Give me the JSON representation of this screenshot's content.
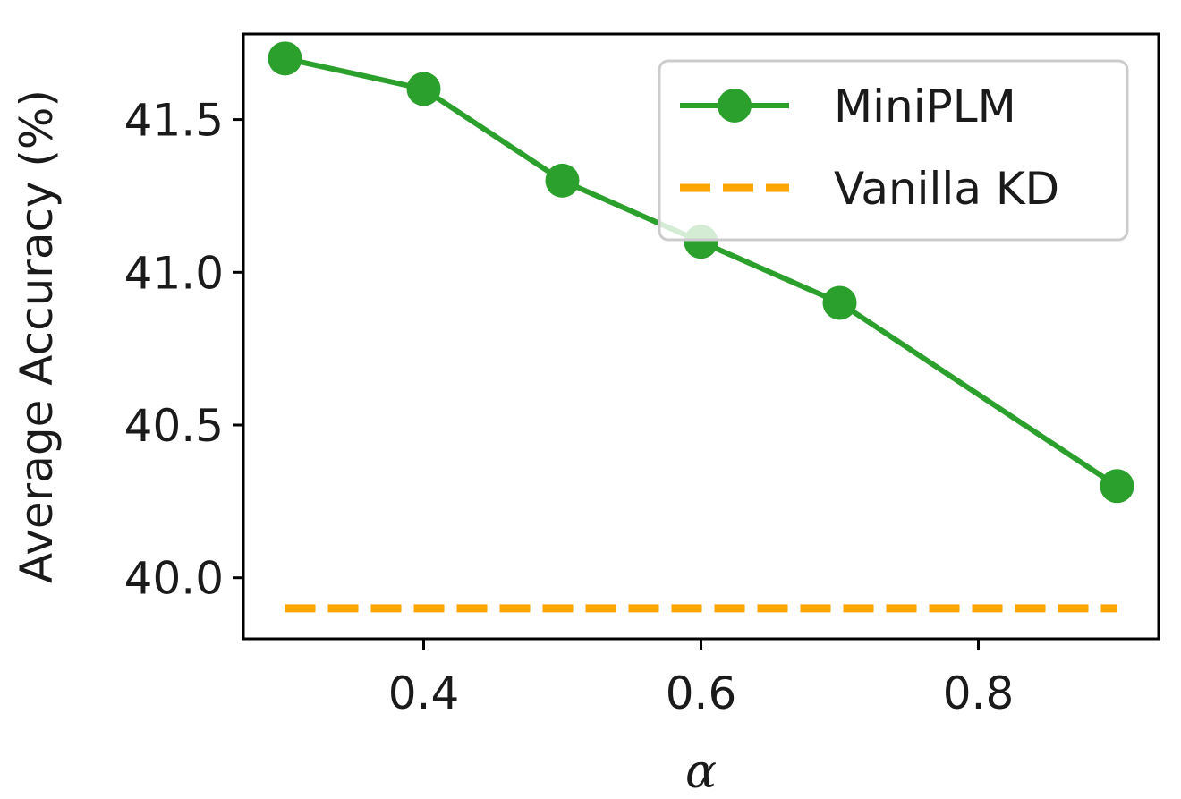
{
  "chart_data": {
    "type": "line",
    "title": "",
    "xlabel": "α",
    "ylabel": "Average Accuracy (%)",
    "xlim": [
      0.27,
      0.93
    ],
    "ylim": [
      39.8,
      41.78
    ],
    "xticks": [
      0.4,
      0.6,
      0.8
    ],
    "xtick_labels": [
      "0.4",
      "0.6",
      "0.8"
    ],
    "yticks": [
      40.0,
      40.5,
      41.0,
      41.5
    ],
    "ytick_labels": [
      "40.0",
      "40.5",
      "41.0",
      "41.5"
    ],
    "grid": false,
    "legend_position": "top-right",
    "series": [
      {
        "name": "MiniPLM",
        "style": "solid-marker",
        "color": "#2ca02c",
        "x": [
          0.3,
          0.4,
          0.5,
          0.6,
          0.7,
          0.9
        ],
        "values": [
          41.7,
          41.6,
          41.3,
          41.1,
          40.9,
          40.3
        ]
      },
      {
        "name": "Vanilla KD",
        "style": "dashed",
        "color": "#ffa500",
        "x": [
          0.3,
          0.9
        ],
        "values": [
          39.9,
          39.9
        ]
      }
    ]
  }
}
